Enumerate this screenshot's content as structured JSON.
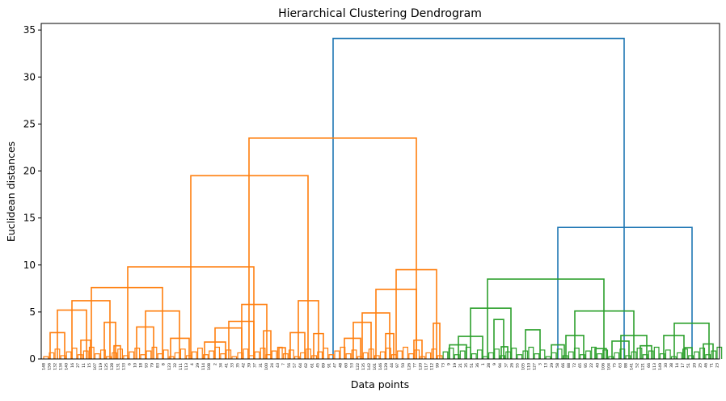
{
  "chart_data": {
    "type": "dendrogram",
    "title": "Hierarchical Clustering Dendrogram",
    "xlabel": "Data points",
    "ylabel": "Euclidean distances",
    "ylim": [
      0,
      35.7
    ],
    "yticks": [
      0,
      5,
      10,
      15,
      20,
      25,
      30,
      35
    ],
    "grid": false,
    "legend": "none",
    "colors": {
      "cluster_a": "#ff7f0e",
      "cluster_b": "#2ca02c",
      "root": "#1f77b4"
    },
    "leaf_labels": [
      "148",
      "156",
      "132",
      "134",
      "140",
      "16",
      "27",
      "11",
      "15",
      "107",
      "119",
      "125",
      "128",
      "131",
      "133",
      "6",
      "10",
      "18",
      "93",
      "79",
      "83",
      "8",
      "123",
      "32",
      "111",
      "113",
      "4",
      "29",
      "114",
      "108",
      "2",
      "34",
      "41",
      "33",
      "35",
      "42",
      "39",
      "37",
      "31",
      "100",
      "24",
      "43",
      "7",
      "56",
      "57",
      "64",
      "62",
      "61",
      "45",
      "89",
      "91",
      "47",
      "48",
      "60",
      "53",
      "122",
      "135",
      "142",
      "101",
      "146",
      "129",
      "44",
      "97",
      "50",
      "126",
      "77",
      "120",
      "117",
      "112",
      "99",
      "73",
      "9",
      "19",
      "21",
      "35",
      "51",
      "36",
      "1",
      "28",
      "9",
      "94",
      "37",
      "26",
      "55",
      "105",
      "110",
      "127",
      "3",
      "13",
      "29",
      "58",
      "66",
      "88",
      "72",
      "65",
      "95",
      "22",
      "40",
      "106",
      "104",
      "75",
      "63",
      "88",
      "141",
      "52",
      "121",
      "66",
      "113",
      "149",
      "30",
      "38",
      "14",
      "17",
      "51",
      "20",
      "25",
      "46",
      "71",
      "23"
    ],
    "merges": [
      {
        "x1": 412,
        "x2": 772,
        "h": 34.1,
        "cluster": "root"
      },
      {
        "x1": 308,
        "x2": 515,
        "h": 23.5,
        "cluster": "cluster_a"
      },
      {
        "x1": 690,
        "x2": 856,
        "h": 14.0,
        "cluster": "root"
      },
      {
        "x1": 236,
        "x2": 381,
        "h": 19.5,
        "cluster": "cluster_a"
      },
      {
        "x1": 158,
        "x2": 314,
        "h": 9.8,
        "cluster": "cluster_a"
      },
      {
        "x1": 490,
        "x2": 540,
        "h": 9.5,
        "cluster": "cluster_a"
      },
      {
        "x1": 113,
        "x2": 201,
        "h": 7.6,
        "cluster": "cluster_a"
      },
      {
        "x1": 465,
        "x2": 515,
        "h": 7.4,
        "cluster": "cluster_a"
      },
      {
        "x1": 603,
        "x2": 747,
        "h": 8.5,
        "cluster": "cluster_b"
      },
      {
        "x1": 89,
        "x2": 136,
        "h": 6.2,
        "cluster": "cluster_a"
      },
      {
        "x1": 369,
        "x2": 394,
        "h": 6.2,
        "cluster": "cluster_a"
      },
      {
        "x1": 299,
        "x2": 330,
        "h": 5.8,
        "cluster": "cluster_a"
      },
      {
        "x1": 71,
        "x2": 107,
        "h": 5.2,
        "cluster": "cluster_a"
      },
      {
        "x1": 180,
        "x2": 222,
        "h": 5.1,
        "cluster": "cluster_a"
      },
      {
        "x1": 711,
        "x2": 784,
        "h": 5.1,
        "cluster": "cluster_b"
      },
      {
        "x1": 448,
        "x2": 482,
        "h": 4.9,
        "cluster": "cluster_a"
      },
      {
        "x1": 582,
        "x2": 632,
        "h": 5.4,
        "cluster": "cluster_b"
      },
      {
        "x1": 283,
        "x2": 314,
        "h": 4.0,
        "cluster": "cluster_a"
      },
      {
        "x1": 437,
        "x2": 459,
        "h": 3.9,
        "cluster": "cluster_a"
      },
      {
        "x1": 129,
        "x2": 143,
        "h": 3.9,
        "cluster": "cluster_a"
      },
      {
        "x1": 834,
        "x2": 877,
        "h": 3.8,
        "cluster": "cluster_b"
      },
      {
        "x1": 536,
        "x2": 544,
        "h": 3.8,
        "cluster": "cluster_a"
      },
      {
        "x1": 169,
        "x2": 190,
        "h": 3.4,
        "cluster": "cluster_a"
      },
      {
        "x1": 266,
        "x2": 299,
        "h": 3.3,
        "cluster": "cluster_a"
      },
      {
        "x1": 611,
        "x2": 623,
        "h": 4.2,
        "cluster": "cluster_b"
      },
      {
        "x1": 650,
        "x2": 668,
        "h": 3.1,
        "cluster": "cluster_b"
      },
      {
        "x1": 326,
        "x2": 335,
        "h": 3.0,
        "cluster": "cluster_a"
      },
      {
        "x1": 62,
        "x2": 80,
        "h": 2.8,
        "cluster": "cluster_a"
      },
      {
        "x1": 359,
        "x2": 377,
        "h": 2.8,
        "cluster": "cluster_a"
      },
      {
        "x1": 388,
        "x2": 400,
        "h": 2.7,
        "cluster": "cluster_a"
      },
      {
        "x1": 477,
        "x2": 487,
        "h": 2.7,
        "cluster": "cluster_a"
      },
      {
        "x1": 567,
        "x2": 597,
        "h": 2.4,
        "cluster": "cluster_b"
      },
      {
        "x1": 768,
        "x2": 800,
        "h": 2.5,
        "cluster": "cluster_b"
      },
      {
        "x1": 700,
        "x2": 722,
        "h": 2.5,
        "cluster": "cluster_b"
      },
      {
        "x1": 821,
        "x2": 846,
        "h": 2.5,
        "cluster": "cluster_b"
      },
      {
        "x1": 211,
        "x2": 234,
        "h": 2.2,
        "cluster": "cluster_a"
      },
      {
        "x1": 426,
        "x2": 446,
        "h": 2.2,
        "cluster": "cluster_a"
      },
      {
        "x1": 512,
        "x2": 522,
        "h": 2.0,
        "cluster": "cluster_a"
      },
      {
        "x1": 100,
        "x2": 112,
        "h": 2.0,
        "cluster": "cluster_a"
      },
      {
        "x1": 253,
        "x2": 279,
        "h": 1.8,
        "cluster": "cluster_a"
      },
      {
        "x1": 757,
        "x2": 778,
        "h": 1.9,
        "cluster": "cluster_b"
      },
      {
        "x1": 682,
        "x2": 698,
        "h": 1.5,
        "cluster": "cluster_b"
      },
      {
        "x1": 556,
        "x2": 577,
        "h": 1.5,
        "cluster": "cluster_b"
      },
      {
        "x1": 870,
        "x2": 882,
        "h": 1.6,
        "cluster": "cluster_b"
      },
      {
        "x1": 792,
        "x2": 806,
        "h": 1.4,
        "cluster": "cluster_b"
      },
      {
        "x1": 141,
        "x2": 149,
        "h": 1.4,
        "cluster": "cluster_a"
      },
      {
        "x1": 345,
        "x2": 353,
        "h": 1.2,
        "cluster": "cluster_a"
      },
      {
        "x1": 736,
        "x2": 750,
        "h": 1.1,
        "cluster": "cluster_b"
      },
      {
        "x1": 620,
        "x2": 628,
        "h": 1.3,
        "cluster": "cluster_b"
      },
      {
        "x1": 847,
        "x2": 856,
        "h": 1.2,
        "cluster": "cluster_b"
      }
    ]
  }
}
